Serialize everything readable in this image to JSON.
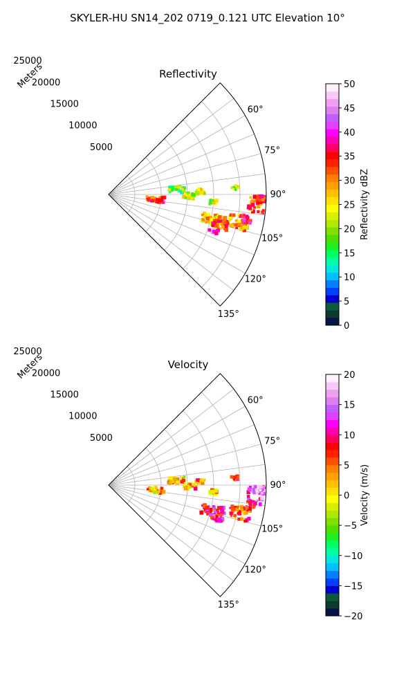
{
  "figure": {
    "suptitle": "SKYLER-HU  SN14_202  0719_0.121 UTC Elevation 10°"
  },
  "chart_data": [
    {
      "type": "heatmap",
      "projection": "polar-sector",
      "title": "Reflectivity",
      "radial_axis_label": "Meters",
      "radial_ticks": [
        5000,
        10000,
        15000,
        20000,
        25000
      ],
      "radial_tick_labels": [
        "5000",
        "10000",
        "15000",
        "20000",
        "25000"
      ],
      "radial_max": 30000,
      "azimuth_range_deg": [
        45,
        135
      ],
      "azimuth_ticks_deg": [
        60,
        75,
        90,
        105,
        120,
        135
      ],
      "azimuth_tick_labels": [
        "60°",
        "75°",
        "90°",
        "105°",
        "120°",
        "135°"
      ],
      "grid": true,
      "colorbar": {
        "label": "Reflectivity dBZ",
        "vmin": 0,
        "vmax": 50,
        "ticks": [
          0,
          5,
          10,
          15,
          20,
          25,
          30,
          35,
          40,
          45,
          50
        ],
        "tick_labels": [
          "0",
          "5",
          "10",
          "15",
          "20",
          "25",
          "30",
          "35",
          "40",
          "45",
          "50"
        ],
        "colors": [
          "#081444",
          "#0a3a30",
          "#0c5a3a",
          "#0000c8",
          "#0040ff",
          "#0080ff",
          "#00c0ff",
          "#00e8e0",
          "#00ffa0",
          "#00ff60",
          "#20f020",
          "#50e000",
          "#80e000",
          "#b0e800",
          "#d8f000",
          "#ffff00",
          "#ffe000",
          "#ffc000",
          "#ffa000",
          "#ff8000",
          "#ff5000",
          "#ff2000",
          "#ff0000",
          "#ff0060",
          "#ff00b0",
          "#ff00ff",
          "#e040ff",
          "#c060ff",
          "#e080f0",
          "#f0a0f0",
          "#f8c8f8",
          "#fff0ff"
        ]
      },
      "echoes": [
        {
          "azimuth_deg": 96,
          "range_m": 9000,
          "azimuth_width_deg": 6,
          "range_width_m": 3500,
          "value": 34
        },
        {
          "azimuth_deg": 97,
          "range_m": 9800,
          "azimuth_width_deg": 3,
          "range_width_m": 1500,
          "value": 38
        },
        {
          "azimuth_deg": 86,
          "range_m": 13000,
          "azimuth_width_deg": 5,
          "range_width_m": 3000,
          "value": 17
        },
        {
          "azimuth_deg": 91,
          "range_m": 15500,
          "azimuth_width_deg": 4,
          "range_width_m": 2500,
          "value": 22
        },
        {
          "azimuth_deg": 88,
          "range_m": 17500,
          "azimuth_width_deg": 3,
          "range_width_m": 1500,
          "value": 24
        },
        {
          "azimuth_deg": 94,
          "range_m": 20000,
          "azimuth_width_deg": 3,
          "range_width_m": 1500,
          "value": 21
        },
        {
          "azimuth_deg": 104,
          "range_m": 20500,
          "azimuth_width_deg": 6,
          "range_width_m": 4500,
          "value": 27
        },
        {
          "azimuth_deg": 105,
          "range_m": 22000,
          "azimuth_width_deg": 4,
          "range_width_m": 3000,
          "value": 33
        },
        {
          "azimuth_deg": 109,
          "range_m": 21000,
          "azimuth_width_deg": 2,
          "range_width_m": 2000,
          "value": 43
        },
        {
          "azimuth_deg": 102,
          "range_m": 25500,
          "azimuth_width_deg": 6,
          "range_width_m": 4000,
          "value": 29
        },
        {
          "azimuth_deg": 100,
          "range_m": 26500,
          "azimuth_width_deg": 3,
          "range_width_m": 2000,
          "value": 36
        },
        {
          "azimuth_deg": 94,
          "range_m": 28200,
          "azimuth_width_deg": 7,
          "range_width_m": 3200,
          "value": 31
        },
        {
          "azimuth_deg": 92,
          "range_m": 29000,
          "azimuth_width_deg": 3,
          "range_width_m": 1500,
          "value": 37
        },
        {
          "azimuth_deg": 87,
          "range_m": 24000,
          "azimuth_width_deg": 2,
          "range_width_m": 1200,
          "value": 20
        }
      ]
    },
    {
      "type": "heatmap",
      "projection": "polar-sector",
      "title": "Velocity",
      "radial_axis_label": "Meters",
      "radial_ticks": [
        5000,
        10000,
        15000,
        20000,
        25000
      ],
      "radial_tick_labels": [
        "5000",
        "10000",
        "15000",
        "20000",
        "25000"
      ],
      "radial_max": 30000,
      "azimuth_range_deg": [
        45,
        135
      ],
      "azimuth_ticks_deg": [
        60,
        75,
        90,
        105,
        120,
        135
      ],
      "azimuth_tick_labels": [
        "60°",
        "75°",
        "90°",
        "105°",
        "120°",
        "135°"
      ],
      "grid": true,
      "colorbar": {
        "label": "Velocity (m/s)",
        "vmin": -20,
        "vmax": 20,
        "ticks": [
          -20,
          -15,
          -10,
          -5,
          0,
          5,
          10,
          15,
          20
        ],
        "tick_labels": [
          "−20",
          "−15",
          "−10",
          "−5",
          "0",
          "5",
          "10",
          "15",
          "20"
        ],
        "colors": [
          "#081444",
          "#0a3a30",
          "#0c5a3a",
          "#0000c8",
          "#0040ff",
          "#0080ff",
          "#00c0ff",
          "#00e8e0",
          "#00ffa0",
          "#00ff60",
          "#20f020",
          "#50e000",
          "#80e000",
          "#b0e800",
          "#d8f000",
          "#ffff00",
          "#ffe000",
          "#ffc000",
          "#ffa000",
          "#ff8000",
          "#ff5000",
          "#ff2000",
          "#ff0000",
          "#ff0060",
          "#ff00b0",
          "#ff00ff",
          "#e040ff",
          "#c060ff",
          "#e080f0",
          "#f0a0f0",
          "#f8c8f8",
          "#fff0ff"
        ]
      },
      "echoes": [
        {
          "azimuth_deg": 96,
          "range_m": 9000,
          "azimuth_width_deg": 6,
          "range_width_m": 3500,
          "value": 3
        },
        {
          "azimuth_deg": 86,
          "range_m": 13000,
          "azimuth_width_deg": 5,
          "range_width_m": 3000,
          "value": 1
        },
        {
          "azimuth_deg": 91,
          "range_m": 15500,
          "azimuth_width_deg": 4,
          "range_width_m": 2500,
          "value": 3
        },
        {
          "azimuth_deg": 88,
          "range_m": 17500,
          "azimuth_width_deg": 3,
          "range_width_m": 1500,
          "value": 4
        },
        {
          "azimuth_deg": 94,
          "range_m": 20000,
          "azimuth_width_deg": 3,
          "range_width_m": 1500,
          "value": 3
        },
        {
          "azimuth_deg": 104,
          "range_m": 20500,
          "azimuth_width_deg": 6,
          "range_width_m": 4500,
          "value": 9
        },
        {
          "azimuth_deg": 107,
          "range_m": 21500,
          "azimuth_width_deg": 3,
          "range_width_m": 2500,
          "value": 11
        },
        {
          "azimuth_deg": 102,
          "range_m": 25500,
          "azimuth_width_deg": 6,
          "range_width_m": 4000,
          "value": 5
        },
        {
          "azimuth_deg": 98,
          "range_m": 27500,
          "azimuth_width_deg": 3,
          "range_width_m": 2000,
          "value": 9
        },
        {
          "azimuth_deg": 94,
          "range_m": 28200,
          "azimuth_width_deg": 7,
          "range_width_m": 3200,
          "value": 13
        },
        {
          "azimuth_deg": 92,
          "range_m": 29000,
          "azimuth_width_deg": 3,
          "range_width_m": 1500,
          "value": 16
        },
        {
          "azimuth_deg": 87,
          "range_m": 24000,
          "azimuth_width_deg": 2,
          "range_width_m": 1200,
          "value": 8
        }
      ]
    }
  ]
}
